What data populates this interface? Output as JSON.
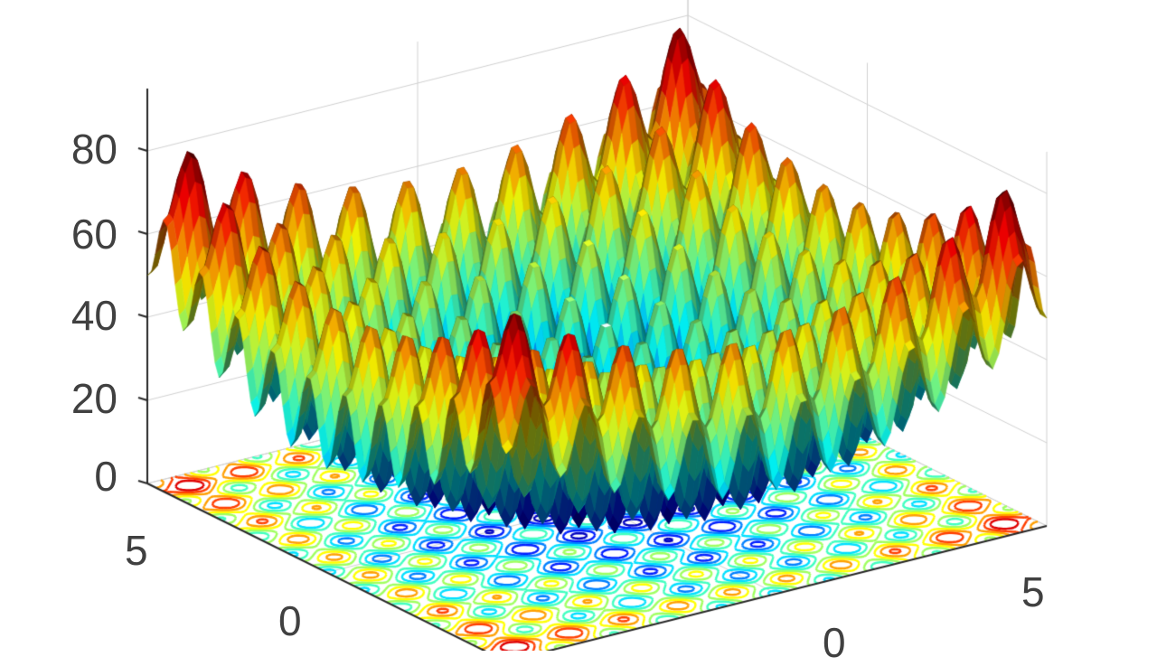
{
  "chart_data": {
    "type": "surface",
    "subtype": "surfc (3D surface with contour projection)",
    "function": "Rastrigin: z = 20 + x^2 + y^2 - 10*(cos(2*pi*x) + cos(2*pi*y))",
    "title": "",
    "xlabel": "",
    "ylabel": "",
    "zlabel": "",
    "xlim": [
      -5,
      5
    ],
    "ylim": [
      -5,
      5
    ],
    "zlim": [
      0,
      90
    ],
    "grid": true,
    "colormap": "jet",
    "z_ticks": [
      0,
      20,
      40,
      60,
      80
    ],
    "x_ticks_visible": [
      0,
      5
    ],
    "y_ticks_visible": [
      0,
      5
    ],
    "z_tick_labels": [
      "0",
      "20",
      "40",
      "60",
      "80"
    ],
    "x_tick_labels": [
      "0",
      "5"
    ],
    "y_tick_labels": [
      "5",
      "0"
    ],
    "legend": null,
    "colors": {
      "low": "#00008f",
      "mid": "#00ffff",
      "high": "#800000",
      "axis": "#262626",
      "grid": "#d0d0d0",
      "tick_text": "#404040"
    }
  },
  "axes": {
    "z_labels": [
      "80",
      "60",
      "40",
      "20",
      "0"
    ],
    "y_labels": [
      "5",
      "0"
    ],
    "x_labels": [
      "5",
      "0"
    ]
  }
}
